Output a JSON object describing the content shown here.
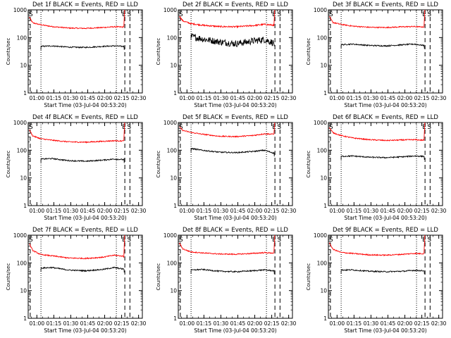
{
  "chart_data": {
    "type": "line",
    "scale": "log",
    "ylim": [
      1,
      1000
    ],
    "yticks": [
      1,
      10,
      100,
      1000
    ],
    "ytick_labels": [
      "1",
      "10",
      "100",
      "1000"
    ],
    "ylabel": "Counts/sec",
    "xlabel": "Start Time (03-Jul-04 00:53:20)",
    "xlim_minutes": [
      -1,
      100
    ],
    "xticks_minutes": [
      6.67,
      21.67,
      36.67,
      51.67,
      66.67,
      81.67,
      96.67
    ],
    "xtick_labels": [
      "01:00",
      "01:15",
      "01:30",
      "01:45",
      "02:00",
      "02:15",
      "02:30"
    ],
    "event_markers": [
      {
        "label": "E",
        "minutes": 84.5
      },
      {
        "label": "S",
        "minutes": 89.0
      }
    ],
    "series_colors": {
      "events": "#000000",
      "lld": "#ff0000"
    },
    "panels": [
      {
        "title": "Det 1f BLACK = Events, RED = LLD",
        "dash_x": [
          0.8,
          84.5,
          89.0
        ],
        "dot_x": [
          10.3,
          77.0
        ],
        "events_start": 10.3,
        "events_end": 84.0,
        "lld_start_val": 550,
        "lld_end_val": 240,
        "lld_tail_val": 1000,
        "lld_profile": [
          [
            0,
            550
          ],
          [
            3,
            340
          ],
          [
            10,
            290
          ],
          [
            20,
            250
          ],
          [
            35,
            220
          ],
          [
            50,
            215
          ],
          [
            65,
            230
          ],
          [
            75,
            245
          ],
          [
            83,
            240
          ]
        ],
        "events_profile": [
          [
            10.3,
            48
          ],
          [
            20,
            50
          ],
          [
            35,
            45
          ],
          [
            50,
            44
          ],
          [
            65,
            48
          ],
          [
            75,
            50
          ],
          [
            83,
            48
          ]
        ]
      },
      {
        "title": "Det 2f BLACK = Events, RED = LLD",
        "dash_x": [
          0.8,
          84.5,
          89.0
        ],
        "dot_x": [
          10.3,
          77.0
        ],
        "events_start": 10.3,
        "events_end": 84.0,
        "lld_start_val": 600,
        "lld_end_val": 260,
        "lld_tail_val": 1000,
        "lld_profile": [
          [
            0,
            600
          ],
          [
            3,
            400
          ],
          [
            10,
            320
          ],
          [
            20,
            280
          ],
          [
            35,
            250
          ],
          [
            50,
            245
          ],
          [
            65,
            270
          ],
          [
            75,
            300
          ],
          [
            83,
            280
          ]
        ],
        "events_profile": [
          [
            10.3,
            110
          ],
          [
            20,
            90
          ],
          [
            35,
            70
          ],
          [
            50,
            60
          ],
          [
            65,
            75
          ],
          [
            75,
            85
          ],
          [
            83,
            65
          ]
        ]
      },
      {
        "title": "Det 3f BLACK = Events, RED = LLD",
        "dash_x": [
          0.8,
          84.5,
          89.0
        ],
        "dot_x": [
          10.3,
          77.0
        ],
        "events_start": 10.3,
        "events_end": 84.0,
        "lld_start_val": 560,
        "lld_end_val": 240,
        "lld_tail_val": 1000,
        "lld_profile": [
          [
            0,
            560
          ],
          [
            3,
            350
          ],
          [
            10,
            300
          ],
          [
            20,
            260
          ],
          [
            35,
            235
          ],
          [
            50,
            230
          ],
          [
            65,
            245
          ],
          [
            75,
            250
          ],
          [
            83,
            240
          ]
        ],
        "events_profile": [
          [
            10.3,
            55
          ],
          [
            20,
            58
          ],
          [
            35,
            52
          ],
          [
            50,
            50
          ],
          [
            65,
            55
          ],
          [
            75,
            58
          ],
          [
            83,
            52
          ]
        ]
      },
      {
        "title": "Det 4f BLACK = Events, RED = LLD",
        "dash_x": [
          0.8,
          84.5,
          89.0
        ],
        "dot_x": [
          10.3,
          77.0
        ],
        "events_start": 10.3,
        "events_end": 84.0,
        "lld_start_val": 550,
        "lld_end_val": 220,
        "lld_tail_val": 1000,
        "lld_profile": [
          [
            0,
            550
          ],
          [
            3,
            330
          ],
          [
            10,
            260
          ],
          [
            20,
            230
          ],
          [
            35,
            200
          ],
          [
            50,
            195
          ],
          [
            65,
            210
          ],
          [
            75,
            220
          ],
          [
            83,
            215
          ]
        ],
        "events_profile": [
          [
            10.3,
            48
          ],
          [
            20,
            50
          ],
          [
            35,
            42
          ],
          [
            50,
            40
          ],
          [
            65,
            44
          ],
          [
            75,
            48
          ],
          [
            83,
            46
          ]
        ]
      },
      {
        "title": "Det 5f BLACK = Events, RED = LLD",
        "dash_x": [
          0.8,
          84.5,
          89.0
        ],
        "dot_x": [
          10.3,
          77.0
        ],
        "events_start": 10.3,
        "events_end": 84.0,
        "lld_start_val": 700,
        "lld_end_val": 380,
        "lld_tail_val": 1000,
        "lld_profile": [
          [
            0,
            700
          ],
          [
            3,
            520
          ],
          [
            10,
            440
          ],
          [
            20,
            380
          ],
          [
            35,
            320
          ],
          [
            50,
            310
          ],
          [
            65,
            340
          ],
          [
            75,
            390
          ],
          [
            83,
            380
          ]
        ],
        "events_profile": [
          [
            10.3,
            115
          ],
          [
            20,
            100
          ],
          [
            35,
            85
          ],
          [
            50,
            82
          ],
          [
            65,
            90
          ],
          [
            75,
            100
          ],
          [
            83,
            80
          ]
        ]
      },
      {
        "title": "Det 6f BLACK = Events, RED = LLD",
        "dash_x": [
          0.8,
          84.5,
          89.0
        ],
        "dot_x": [
          10.3,
          77.0
        ],
        "events_start": 10.3,
        "events_end": 84.0,
        "lld_start_val": 650,
        "lld_end_val": 230,
        "lld_tail_val": 1000,
        "lld_profile": [
          [
            0,
            650
          ],
          [
            3,
            430
          ],
          [
            10,
            340
          ],
          [
            20,
            280
          ],
          [
            35,
            240
          ],
          [
            50,
            225
          ],
          [
            65,
            235
          ],
          [
            75,
            240
          ],
          [
            83,
            230
          ]
        ],
        "events_profile": [
          [
            10.3,
            60
          ],
          [
            20,
            62
          ],
          [
            35,
            56
          ],
          [
            50,
            54
          ],
          [
            65,
            58
          ],
          [
            75,
            62
          ],
          [
            83,
            60
          ]
        ]
      },
      {
        "title": "Det 7f BLACK = Events, RED = LLD",
        "dash_x": [
          0.8,
          84.5,
          89.0
        ],
        "dot_x": [
          10.3,
          77.0
        ],
        "events_start": 10.3,
        "events_end": 84.0,
        "lld_start_val": 500,
        "lld_end_val": 160,
        "lld_tail_val": 1000,
        "lld_profile": [
          [
            0,
            500
          ],
          [
            3,
            280
          ],
          [
            10,
            200
          ],
          [
            20,
            180
          ],
          [
            35,
            150
          ],
          [
            50,
            145
          ],
          [
            65,
            160
          ],
          [
            75,
            190
          ],
          [
            83,
            175
          ]
        ],
        "events_profile": [
          [
            10.3,
            65
          ],
          [
            20,
            68
          ],
          [
            35,
            55
          ],
          [
            50,
            52
          ],
          [
            65,
            58
          ],
          [
            75,
            68
          ],
          [
            83,
            60
          ]
        ]
      },
      {
        "title": "Det 8f BLACK = Events, RED = LLD",
        "dash_x": [
          0.8,
          84.5,
          89.0
        ],
        "dot_x": [
          10.3,
          77.0
        ],
        "events_start": 10.3,
        "events_end": 84.0,
        "lld_start_val": 520,
        "lld_end_val": 230,
        "lld_tail_val": 1000,
        "lld_profile": [
          [
            0,
            520
          ],
          [
            3,
            320
          ],
          [
            10,
            250
          ],
          [
            20,
            230
          ],
          [
            35,
            210
          ],
          [
            50,
            205
          ],
          [
            65,
            220
          ],
          [
            75,
            235
          ],
          [
            83,
            225
          ]
        ],
        "events_profile": [
          [
            10.3,
            55
          ],
          [
            20,
            58
          ],
          [
            35,
            50
          ],
          [
            50,
            48
          ],
          [
            65,
            52
          ],
          [
            75,
            56
          ],
          [
            83,
            52
          ]
        ]
      },
      {
        "title": "Det 9f BLACK = Events, RED = LLD",
        "dash_x": [
          0.8,
          84.5,
          89.0
        ],
        "dot_x": [
          10.3,
          77.0
        ],
        "events_start": 10.3,
        "events_end": 84.0,
        "lld_start_val": 520,
        "lld_end_val": 220,
        "lld_tail_val": 1000,
        "lld_profile": [
          [
            0,
            520
          ],
          [
            3,
            310
          ],
          [
            10,
            240
          ],
          [
            20,
            220
          ],
          [
            35,
            195
          ],
          [
            50,
            190
          ],
          [
            65,
            205
          ],
          [
            75,
            220
          ],
          [
            83,
            215
          ]
        ],
        "events_profile": [
          [
            10.3,
            55
          ],
          [
            20,
            56
          ],
          [
            35,
            50
          ],
          [
            50,
            48
          ],
          [
            65,
            50
          ],
          [
            75,
            54
          ],
          [
            83,
            52
          ]
        ]
      }
    ]
  }
}
